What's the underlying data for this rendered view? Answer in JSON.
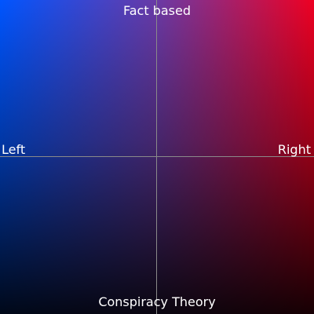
{
  "axes": {
    "top_label": "Fact based",
    "bottom_label": "Conspiracy Theory",
    "left_label": "Left",
    "right_label": "Right"
  },
  "colors": {
    "left_color": "#0055ff",
    "right_color": "#ee0022",
    "bottom_color": "#000000",
    "axis_line_color": "#8a8a8a",
    "label_color": "#ffffff"
  }
}
